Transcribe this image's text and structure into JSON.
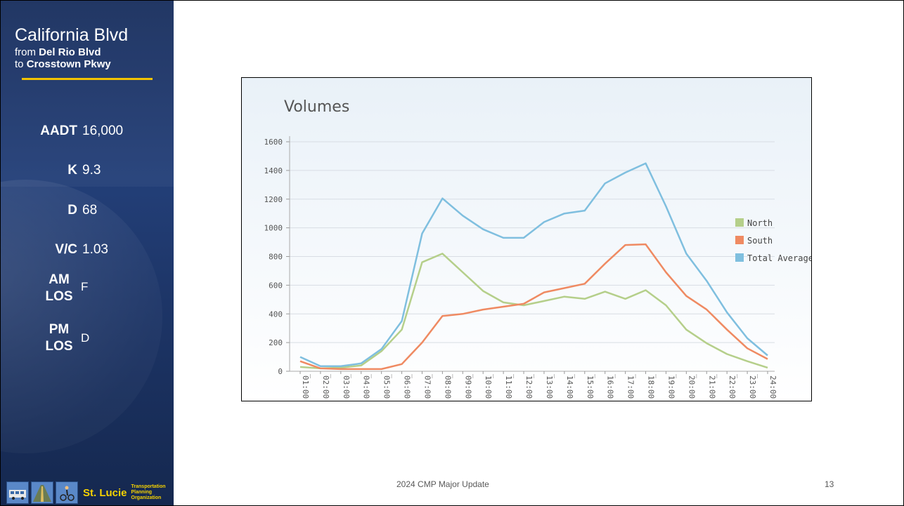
{
  "sidebar": {
    "road": "California Blvd",
    "from_prefix": "from",
    "from_road": "Del Rio Blvd",
    "to_prefix": "to",
    "to_road": "Crosstown Pkwy",
    "stats": [
      {
        "label": "AADT",
        "value": "16,000"
      },
      {
        "label": "K",
        "value": "9.3"
      },
      {
        "label": "D",
        "value": "68"
      },
      {
        "label": "V/C",
        "value": "1.03"
      }
    ],
    "am_los": {
      "label_line1": "AM",
      "label_line2": "LOS",
      "value": "F"
    },
    "pm_los": {
      "label_line1": "PM",
      "label_line2": "LOS",
      "value": "D"
    },
    "logo": {
      "text": "St. Lucie",
      "line1": "Transportation",
      "line2": "Planning",
      "line3": "Organization"
    }
  },
  "footer": {
    "text": "2024 CMP Major Update",
    "page": "13"
  },
  "chart_data": {
    "type": "line",
    "title": "Volumes",
    "categories": [
      "01:00",
      "02:00",
      "03:00",
      "04:00",
      "05:00",
      "06:00",
      "07:00",
      "08:00",
      "09:00",
      "10:00",
      "11:00",
      "12:00",
      "13:00",
      "14:00",
      "15:00",
      "16:00",
      "17:00",
      "18:00",
      "19:00",
      "20:00",
      "21:00",
      "22:00",
      "23:00",
      "24:00"
    ],
    "ylim": [
      0,
      1600
    ],
    "yticks": [
      "0",
      "200",
      "400",
      "600",
      "800",
      "1000",
      "1200",
      "1400",
      "1600"
    ],
    "grid": true,
    "legend_position": "right",
    "series": [
      {
        "name": "North",
        "color": "#b5cf8a",
        "values": [
          30,
          20,
          25,
          40,
          140,
          290,
          760,
          820,
          690,
          560,
          480,
          460,
          490,
          520,
          505,
          555,
          505,
          565,
          460,
          290,
          195,
          120,
          70,
          25
        ]
      },
      {
        "name": "South",
        "color": "#ef8a62",
        "values": [
          70,
          20,
          15,
          15,
          15,
          50,
          200,
          385,
          400,
          430,
          450,
          470,
          550,
          580,
          610,
          750,
          880,
          885,
          690,
          525,
          430,
          290,
          160,
          85
        ]
      },
      {
        "name": "Total Average",
        "color": "#7fbfdf",
        "values": [
          100,
          35,
          35,
          55,
          155,
          350,
          960,
          1205,
          1085,
          990,
          930,
          930,
          1040,
          1100,
          1120,
          1310,
          1385,
          1450,
          1150,
          820,
          630,
          410,
          230,
          110
        ]
      }
    ]
  }
}
